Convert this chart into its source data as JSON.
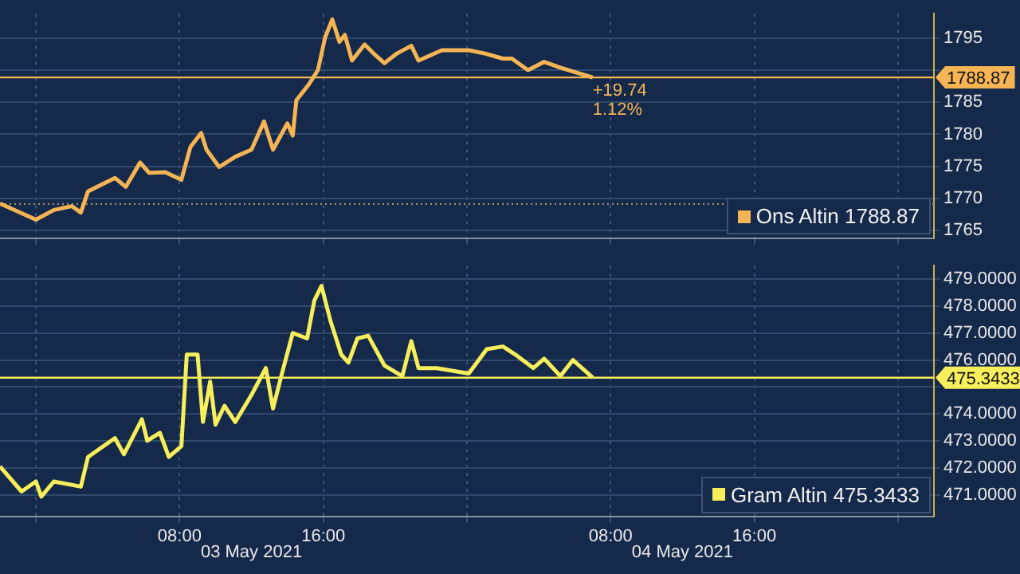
{
  "chart_data": [
    {
      "type": "line",
      "tick_labels": "y",
      "grid": true,
      "legend": "bottom right",
      "marker": "none",
      "xlim": [
        "2021-05-02T22:00",
        "2021-05-05T02:00"
      ],
      "xticks": [
        {
          "value": "2021-05-03T00:00",
          "label": null
        },
        {
          "value": "2021-05-03T08:00",
          "label": null
        },
        {
          "value": "2021-05-03T16:00",
          "label": null
        },
        {
          "value": "2021-05-04T00:00",
          "label": null
        },
        {
          "value": "2021-05-04T08:00",
          "label": null
        },
        {
          "value": "2021-05-04T16:00",
          "label": null
        },
        {
          "value": "2021-05-05T00:00",
          "label": null
        }
      ],
      "ylim": [
        1763.8,
        1798.8
      ],
      "yticks": [
        1765,
        1770,
        1775,
        1780,
        1785,
        {
          "value": 1790,
          "label": null
        },
        1795
      ],
      "series": [
        {
          "name": "Ons Altin 1788.87",
          "color": "#f5b555",
          "x": [
            "2021-05-02T22:00",
            "2021-05-03T00:00",
            "2021-05-03T01:00",
            "2021-05-03T02:00",
            "2021-05-03T02:30",
            "2021-05-03T02:54",
            "2021-05-03T04:24",
            "2021-05-03T05:00",
            "2021-05-03T05:48",
            "2021-05-03T06:18",
            "2021-05-03T07:12",
            "2021-05-03T08:06",
            "2021-05-03T08:36",
            "2021-05-03T09:12",
            "2021-05-03T09:30",
            "2021-05-03T10:12",
            "2021-05-03T11:06",
            "2021-05-03T12:00",
            "2021-05-03T12:42",
            "2021-05-03T13:12",
            "2021-05-03T14:00",
            "2021-05-03T14:18",
            "2021-05-03T14:30",
            "2021-05-03T15:12",
            "2021-05-03T15:42",
            "2021-05-03T16:06",
            "2021-05-03T16:30",
            "2021-05-03T16:54",
            "2021-05-03T17:12",
            "2021-05-03T17:36",
            "2021-05-03T18:18",
            "2021-05-03T18:48",
            "2021-05-03T19:24",
            "2021-05-03T20:06",
            "2021-05-03T20:54",
            "2021-05-03T21:18",
            "2021-05-03T22:36",
            "2021-05-04T00:06",
            "2021-05-04T01:00",
            "2021-05-04T02:00",
            "2021-05-04T02:30",
            "2021-05-04T03:24",
            "2021-05-04T04:18",
            "2021-05-04T05:12",
            "2021-05-04T06:00",
            "2021-05-04T07:00"
          ],
          "values": [
            1769.2,
            1766.7,
            1768.2,
            1768.8,
            1767.8,
            1771.1,
            1773.2,
            1771.8,
            1775.6,
            1774.0,
            1774.1,
            1772.9,
            1778.0,
            1780.2,
            1777.6,
            1774.9,
            1776.5,
            1777.6,
            1782.0,
            1777.6,
            1781.7,
            1779.8,
            1785.3,
            1787.8,
            1790.0,
            1795.1,
            1797.9,
            1794.4,
            1795.5,
            1791.5,
            1794.0,
            1792.6,
            1791.1,
            1792.6,
            1793.8,
            1791.5,
            1793.1,
            1793.1,
            1792.6,
            1791.8,
            1791.8,
            1790.0,
            1791.3,
            1790.4,
            1789.7,
            1788.87
          ]
        }
      ],
      "ref_lines": [
        {
          "axis": "y",
          "value": 1769.13,
          "color": "#9a9462",
          "line_style": "dotted"
        },
        {
          "axis": "y",
          "value": 1788.87,
          "label": "1788.87",
          "color": "#f5b555",
          "line_style": "solid"
        }
      ],
      "annotations": [
        "+19.74",
        "1.12%"
      ]
    },
    {
      "type": "line",
      "grid": true,
      "legend": "bottom right",
      "marker": "none",
      "xlim": [
        "2021-05-02T22:00",
        "2021-05-05T02:00"
      ],
      "xticks": [
        {
          "value": "2021-05-03T00:00",
          "label": null
        },
        {
          "value": "2021-05-03T08:00",
          "label": "08:00"
        },
        {
          "value": "2021-05-03T16:00",
          "label": "16:00"
        },
        {
          "value": "2021-05-04T00:00",
          "label": null
        },
        {
          "value": "2021-05-04T08:00",
          "label": "08:00"
        },
        {
          "value": "2021-05-04T16:00",
          "label": "16:00"
        },
        {
          "value": "2021-05-05T00:00",
          "label": null
        }
      ],
      "ylim": [
        470.2,
        479.5
      ],
      "yticks": [
        {
          "value": 471,
          "label": "471.0000"
        },
        {
          "value": 472,
          "label": "472.0000"
        },
        {
          "value": 473,
          "label": "473.0000"
        },
        {
          "value": 474,
          "label": "474.0000"
        },
        {
          "value": 475,
          "label": null
        },
        {
          "value": 476,
          "label": "476.0000"
        },
        {
          "value": 477,
          "label": "477.0000"
        },
        {
          "value": 478,
          "label": "478.0000"
        },
        {
          "value": 479,
          "label": "479.0000"
        }
      ],
      "series": [
        {
          "name": "Gram Altin 475.3433",
          "color": "#f6ee5a",
          "x": [
            "2021-05-02T22:00",
            "2021-05-02T23:12",
            "2021-05-03T00:00",
            "2021-05-03T00:18",
            "2021-05-03T01:00",
            "2021-05-03T02:30",
            "2021-05-03T02:54",
            "2021-05-03T04:24",
            "2021-05-03T04:54",
            "2021-05-03T05:54",
            "2021-05-03T06:12",
            "2021-05-03T06:54",
            "2021-05-03T07:24",
            "2021-05-03T08:06",
            "2021-05-03T08:24",
            "2021-05-03T09:00",
            "2021-05-03T09:18",
            "2021-05-03T09:42",
            "2021-05-03T10:00",
            "2021-05-03T10:30",
            "2021-05-03T11:06",
            "2021-05-03T12:00",
            "2021-05-03T12:48",
            "2021-05-03T13:12",
            "2021-05-03T13:42",
            "2021-05-03T14:18",
            "2021-05-03T15:06",
            "2021-05-03T15:30",
            "2021-05-03T15:54",
            "2021-05-03T16:24",
            "2021-05-03T17:00",
            "2021-05-03T17:24",
            "2021-05-03T17:54",
            "2021-05-03T18:30",
            "2021-05-03T19:24",
            "2021-05-03T20:24",
            "2021-05-03T20:54",
            "2021-05-03T21:18",
            "2021-05-03T22:18",
            "2021-05-04T00:06",
            "2021-05-04T01:06",
            "2021-05-04T02:00",
            "2021-05-04T02:48",
            "2021-05-04T03:42",
            "2021-05-04T04:18",
            "2021-05-04T05:12",
            "2021-05-04T05:54",
            "2021-05-04T07:00"
          ],
          "values": [
            472.05,
            471.12,
            471.49,
            470.93,
            471.49,
            471.3,
            472.4,
            473.1,
            472.5,
            473.8,
            473.0,
            473.3,
            472.4,
            472.8,
            476.2,
            476.2,
            473.7,
            475.2,
            473.6,
            474.3,
            473.7,
            474.7,
            475.7,
            474.2,
            475.5,
            477.0,
            476.8,
            478.2,
            478.75,
            477.45,
            476.2,
            475.9,
            476.8,
            476.9,
            475.8,
            475.4,
            476.7,
            475.7,
            475.7,
            475.5,
            476.4,
            476.5,
            476.15,
            475.7,
            476.05,
            475.4,
            476.0,
            475.3433
          ]
        }
      ],
      "ref_lines": [
        {
          "axis": "y",
          "value": 475.3433,
          "label": "475.3433",
          "color": "#f6ee5a",
          "line_style": "solid"
        }
      ],
      "annotations": [
        "03 May 2021",
        "04 May 2021"
      ]
    }
  ]
}
